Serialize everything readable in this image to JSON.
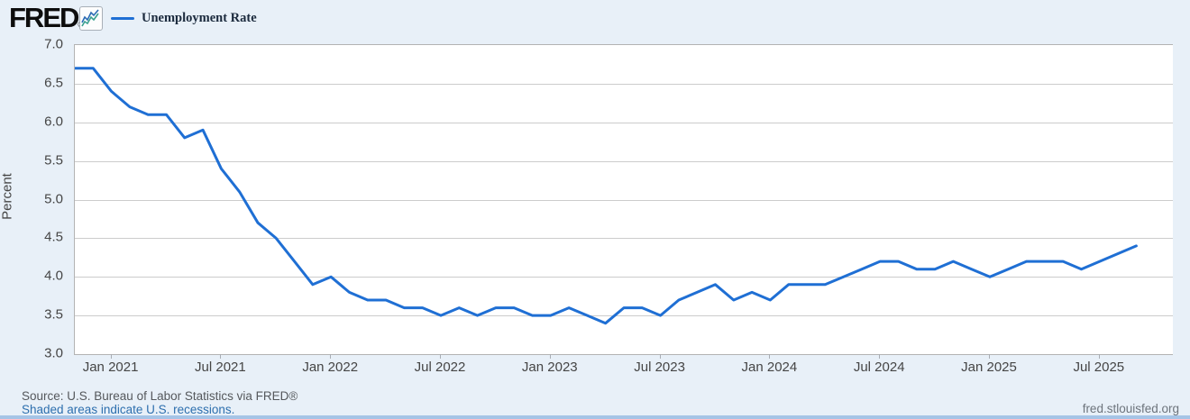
{
  "header": {
    "logo_text": "FRED",
    "registered_mark": "®",
    "legend": {
      "label": "Unemployment Rate"
    }
  },
  "chart_data": {
    "type": "line",
    "title": "Unemployment Rate",
    "xlabel": "",
    "ylabel": "Percent",
    "ylim": [
      3.0,
      7.0
    ],
    "ytick_step": 0.5,
    "ytick_labels": [
      "7.0",
      "6.5",
      "6.0",
      "5.5",
      "5.0",
      "4.5",
      "4.0",
      "3.5",
      "3.0"
    ],
    "grid": true,
    "legend_position": "top-left",
    "x_axis_total_months": 60,
    "xticks": [
      {
        "label": "Jan 2021",
        "month_index": 2
      },
      {
        "label": "Jul 2021",
        "month_index": 8
      },
      {
        "label": "Jan 2022",
        "month_index": 14
      },
      {
        "label": "Jul 2022",
        "month_index": 20
      },
      {
        "label": "Jan 2023",
        "month_index": 26
      },
      {
        "label": "Jul 2023",
        "month_index": 32
      },
      {
        "label": "Jan 2024",
        "month_index": 38
      },
      {
        "label": "Jul 2024",
        "month_index": 44
      },
      {
        "label": "Jan 2025",
        "month_index": 50
      },
      {
        "label": "Jul 2025",
        "month_index": 56
      }
    ],
    "series": [
      {
        "name": "Unemployment Rate",
        "color": "#1f6fd4",
        "x": [
          "Nov 2020",
          "Dec 2020",
          "Jan 2021",
          "Feb 2021",
          "Mar 2021",
          "Apr 2021",
          "May 2021",
          "Jun 2021",
          "Jul 2021",
          "Aug 2021",
          "Sep 2021",
          "Oct 2021",
          "Nov 2021",
          "Dec 2021",
          "Jan 2022",
          "Feb 2022",
          "Mar 2022",
          "Apr 2022",
          "May 2022",
          "Jun 2022",
          "Jul 2022",
          "Aug 2022",
          "Sep 2022",
          "Oct 2022",
          "Nov 2022",
          "Dec 2022",
          "Jan 2023",
          "Feb 2023",
          "Mar 2023",
          "Apr 2023",
          "May 2023",
          "Jun 2023",
          "Jul 2023",
          "Aug 2023",
          "Sep 2023",
          "Oct 2023",
          "Nov 2023",
          "Dec 2023",
          "Jan 2024",
          "Feb 2024",
          "Mar 2024",
          "Apr 2024",
          "May 2024",
          "Jun 2024",
          "Jul 2024",
          "Aug 2024",
          "Sep 2024",
          "Oct 2024",
          "Nov 2024",
          "Dec 2024",
          "Jan 2025",
          "Feb 2025",
          "Mar 2025",
          "Apr 2025",
          "May 2025",
          "Jun 2025",
          "Jul 2025",
          "Aug 2025",
          "Sep 2025"
        ],
        "values": [
          6.7,
          6.7,
          6.4,
          6.2,
          6.1,
          6.1,
          5.8,
          5.9,
          5.4,
          5.1,
          4.7,
          4.5,
          4.2,
          3.9,
          4.0,
          3.8,
          3.7,
          3.7,
          3.6,
          3.6,
          3.5,
          3.6,
          3.5,
          3.6,
          3.6,
          3.5,
          3.5,
          3.6,
          3.5,
          3.4,
          3.6,
          3.6,
          3.5,
          3.7,
          3.8,
          3.9,
          3.7,
          3.8,
          3.7,
          3.9,
          3.9,
          3.9,
          4.0,
          4.1,
          4.2,
          4.2,
          4.1,
          4.1,
          4.2,
          4.1,
          4.0,
          4.1,
          4.2,
          4.2,
          4.2,
          4.1,
          4.2,
          4.3,
          4.4
        ]
      }
    ]
  },
  "footer": {
    "source_line": "Source: U.S. Bureau of Labor Statistics via FRED®",
    "recession_note": "Shaded areas indicate U.S. recessions.",
    "site_url": "fred.stlouisfed.org"
  },
  "colors": {
    "line": "#1f6fd4",
    "background": "#e8f0f8",
    "gridline": "#cccccc",
    "link": "#2d6fae",
    "bottom_strip": "#a5c4e6"
  }
}
